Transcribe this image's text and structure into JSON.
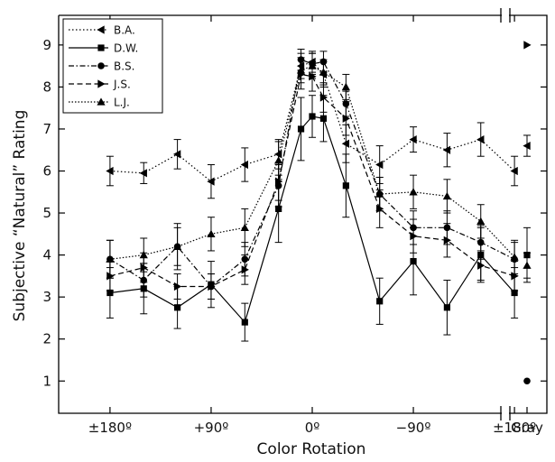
{
  "chart_data": {
    "type": "line",
    "title": "",
    "xlabel": "Color Rotation",
    "ylabel": "Subjective “Natural” Rating",
    "ylim": [
      0.3,
      9.6
    ],
    "yticks": [
      1,
      2,
      3,
      4,
      5,
      6,
      7,
      8,
      9
    ],
    "xticks": [
      {
        "x": -180,
        "label": "±180º"
      },
      {
        "x": -90,
        "label": "+90º"
      },
      {
        "x": 0,
        "label": "0º"
      },
      {
        "x": 90,
        "label": "−90º"
      },
      {
        "x": 180,
        "label": "±180º"
      },
      {
        "x": 250,
        "label": "Gray"
      }
    ],
    "x": [
      -180,
      -150,
      -120,
      -90,
      -60,
      -30,
      -10,
      0,
      10,
      30,
      60,
      90,
      120,
      150,
      180
    ],
    "gray_x": 250,
    "axis_break": true,
    "legend": "top-left",
    "error_bars": true,
    "series": [
      {
        "name": "B.A.",
        "marker": "triangle-left",
        "dash": "1.5,2.5",
        "values": [
          6.0,
          5.95,
          6.4,
          5.75,
          6.15,
          6.4,
          8.5,
          8.6,
          8.3,
          6.65,
          6.15,
          6.75,
          6.5,
          6.75,
          6.0
        ],
        "errors": [
          0.35,
          0.25,
          0.35,
          0.4,
          0.4,
          0.35,
          0.3,
          0.25,
          0.3,
          0.45,
          0.45,
          0.3,
          0.4,
          0.4,
          0.35
        ],
        "gray": 6.6,
        "gray_error": 0.25
      },
      {
        "name": "D.W.",
        "marker": "square",
        "dash": "",
        "values": [
          3.1,
          3.2,
          2.75,
          3.3,
          2.4,
          5.1,
          7.0,
          7.3,
          7.25,
          5.65,
          2.9,
          3.85,
          2.75,
          4.0,
          3.1
        ],
        "errors": [
          0.6,
          0.6,
          0.5,
          0.55,
          0.45,
          0.8,
          0.75,
          0.5,
          0.55,
          0.75,
          0.55,
          0.8,
          0.65,
          0.65,
          0.6
        ],
        "gray": 4.0,
        "gray_error": 0.65
      },
      {
        "name": "B.S.",
        "marker": "circle",
        "dash": "6,2.5,1.5,2.5",
        "values": [
          3.9,
          3.4,
          4.2,
          3.25,
          3.9,
          5.65,
          8.65,
          8.55,
          8.6,
          7.6,
          5.45,
          4.65,
          4.65,
          4.3,
          3.9
        ],
        "errors": [
          0.45,
          0.4,
          0.55,
          0.3,
          0.4,
          0.5,
          0.25,
          0.25,
          0.25,
          0.3,
          0.4,
          0.4,
          0.4,
          0.4,
          0.4
        ],
        "gray": 1.0,
        "gray_error": 0
      },
      {
        "name": "J.S.",
        "marker": "triangle-right",
        "dash": "6,3.5",
        "values": [
          3.5,
          3.7,
          3.25,
          3.25,
          3.65,
          5.75,
          8.3,
          8.25,
          7.75,
          7.25,
          5.1,
          4.45,
          4.35,
          3.75,
          3.5
        ],
        "errors": [
          0.35,
          0.35,
          0.3,
          0.3,
          0.35,
          0.45,
          0.35,
          0.35,
          0.35,
          0.4,
          0.45,
          0.4,
          0.4,
          0.35,
          0.35
        ],
        "gray": 9.0,
        "gray_error": 0
      },
      {
        "name": "L.J.",
        "marker": "triangle-up",
        "dash": "1.5,2",
        "values": [
          3.9,
          4.0,
          4.2,
          4.5,
          4.65,
          6.25,
          8.4,
          8.5,
          8.35,
          8.0,
          5.45,
          5.5,
          5.4,
          4.8,
          3.95
        ],
        "errors": [
          0.45,
          0.4,
          0.45,
          0.4,
          0.45,
          0.45,
          0.3,
          0.3,
          0.3,
          0.3,
          0.4,
          0.4,
          0.4,
          0.4,
          0.4
        ],
        "gray": 3.75,
        "gray_error": 0.3
      }
    ]
  }
}
